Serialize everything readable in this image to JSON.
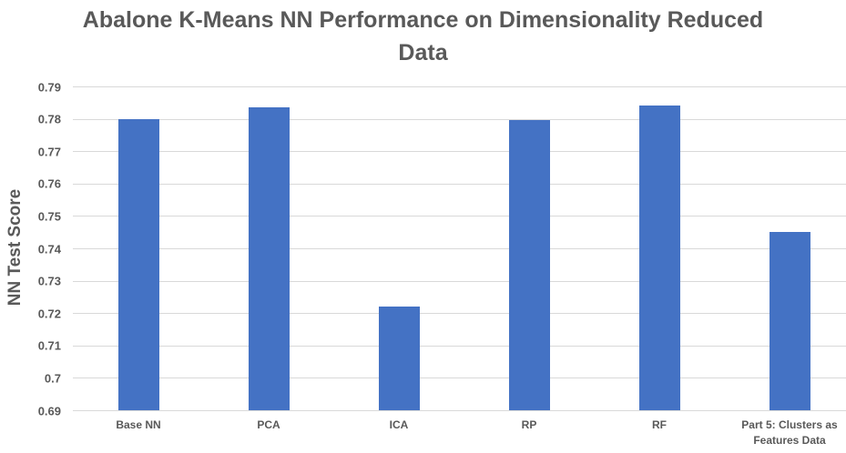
{
  "chart_data": {
    "type": "bar",
    "title": "Abalone K-Means NN Performance on Dimensionality Reduced Data",
    "ylabel": "NN Test Score",
    "xlabel": "",
    "categories": [
      "Base NN",
      "PCA",
      "ICA",
      "RP",
      "RF",
      "Part 5: Clusters as Features Data"
    ],
    "values": [
      0.78,
      0.7835,
      0.722,
      0.7795,
      0.784,
      0.745
    ],
    "ylim": [
      0.69,
      0.79
    ],
    "ytick_step": 0.01,
    "ytick_labels": [
      "0.69",
      "0.7",
      "0.71",
      "0.72",
      "0.73",
      "0.74",
      "0.75",
      "0.76",
      "0.77",
      "0.78",
      "0.79"
    ],
    "grid": true,
    "legend": "none",
    "bar_color": "#4472c4",
    "gridline_color": "#d9d9d9",
    "text_color": "#595959"
  }
}
